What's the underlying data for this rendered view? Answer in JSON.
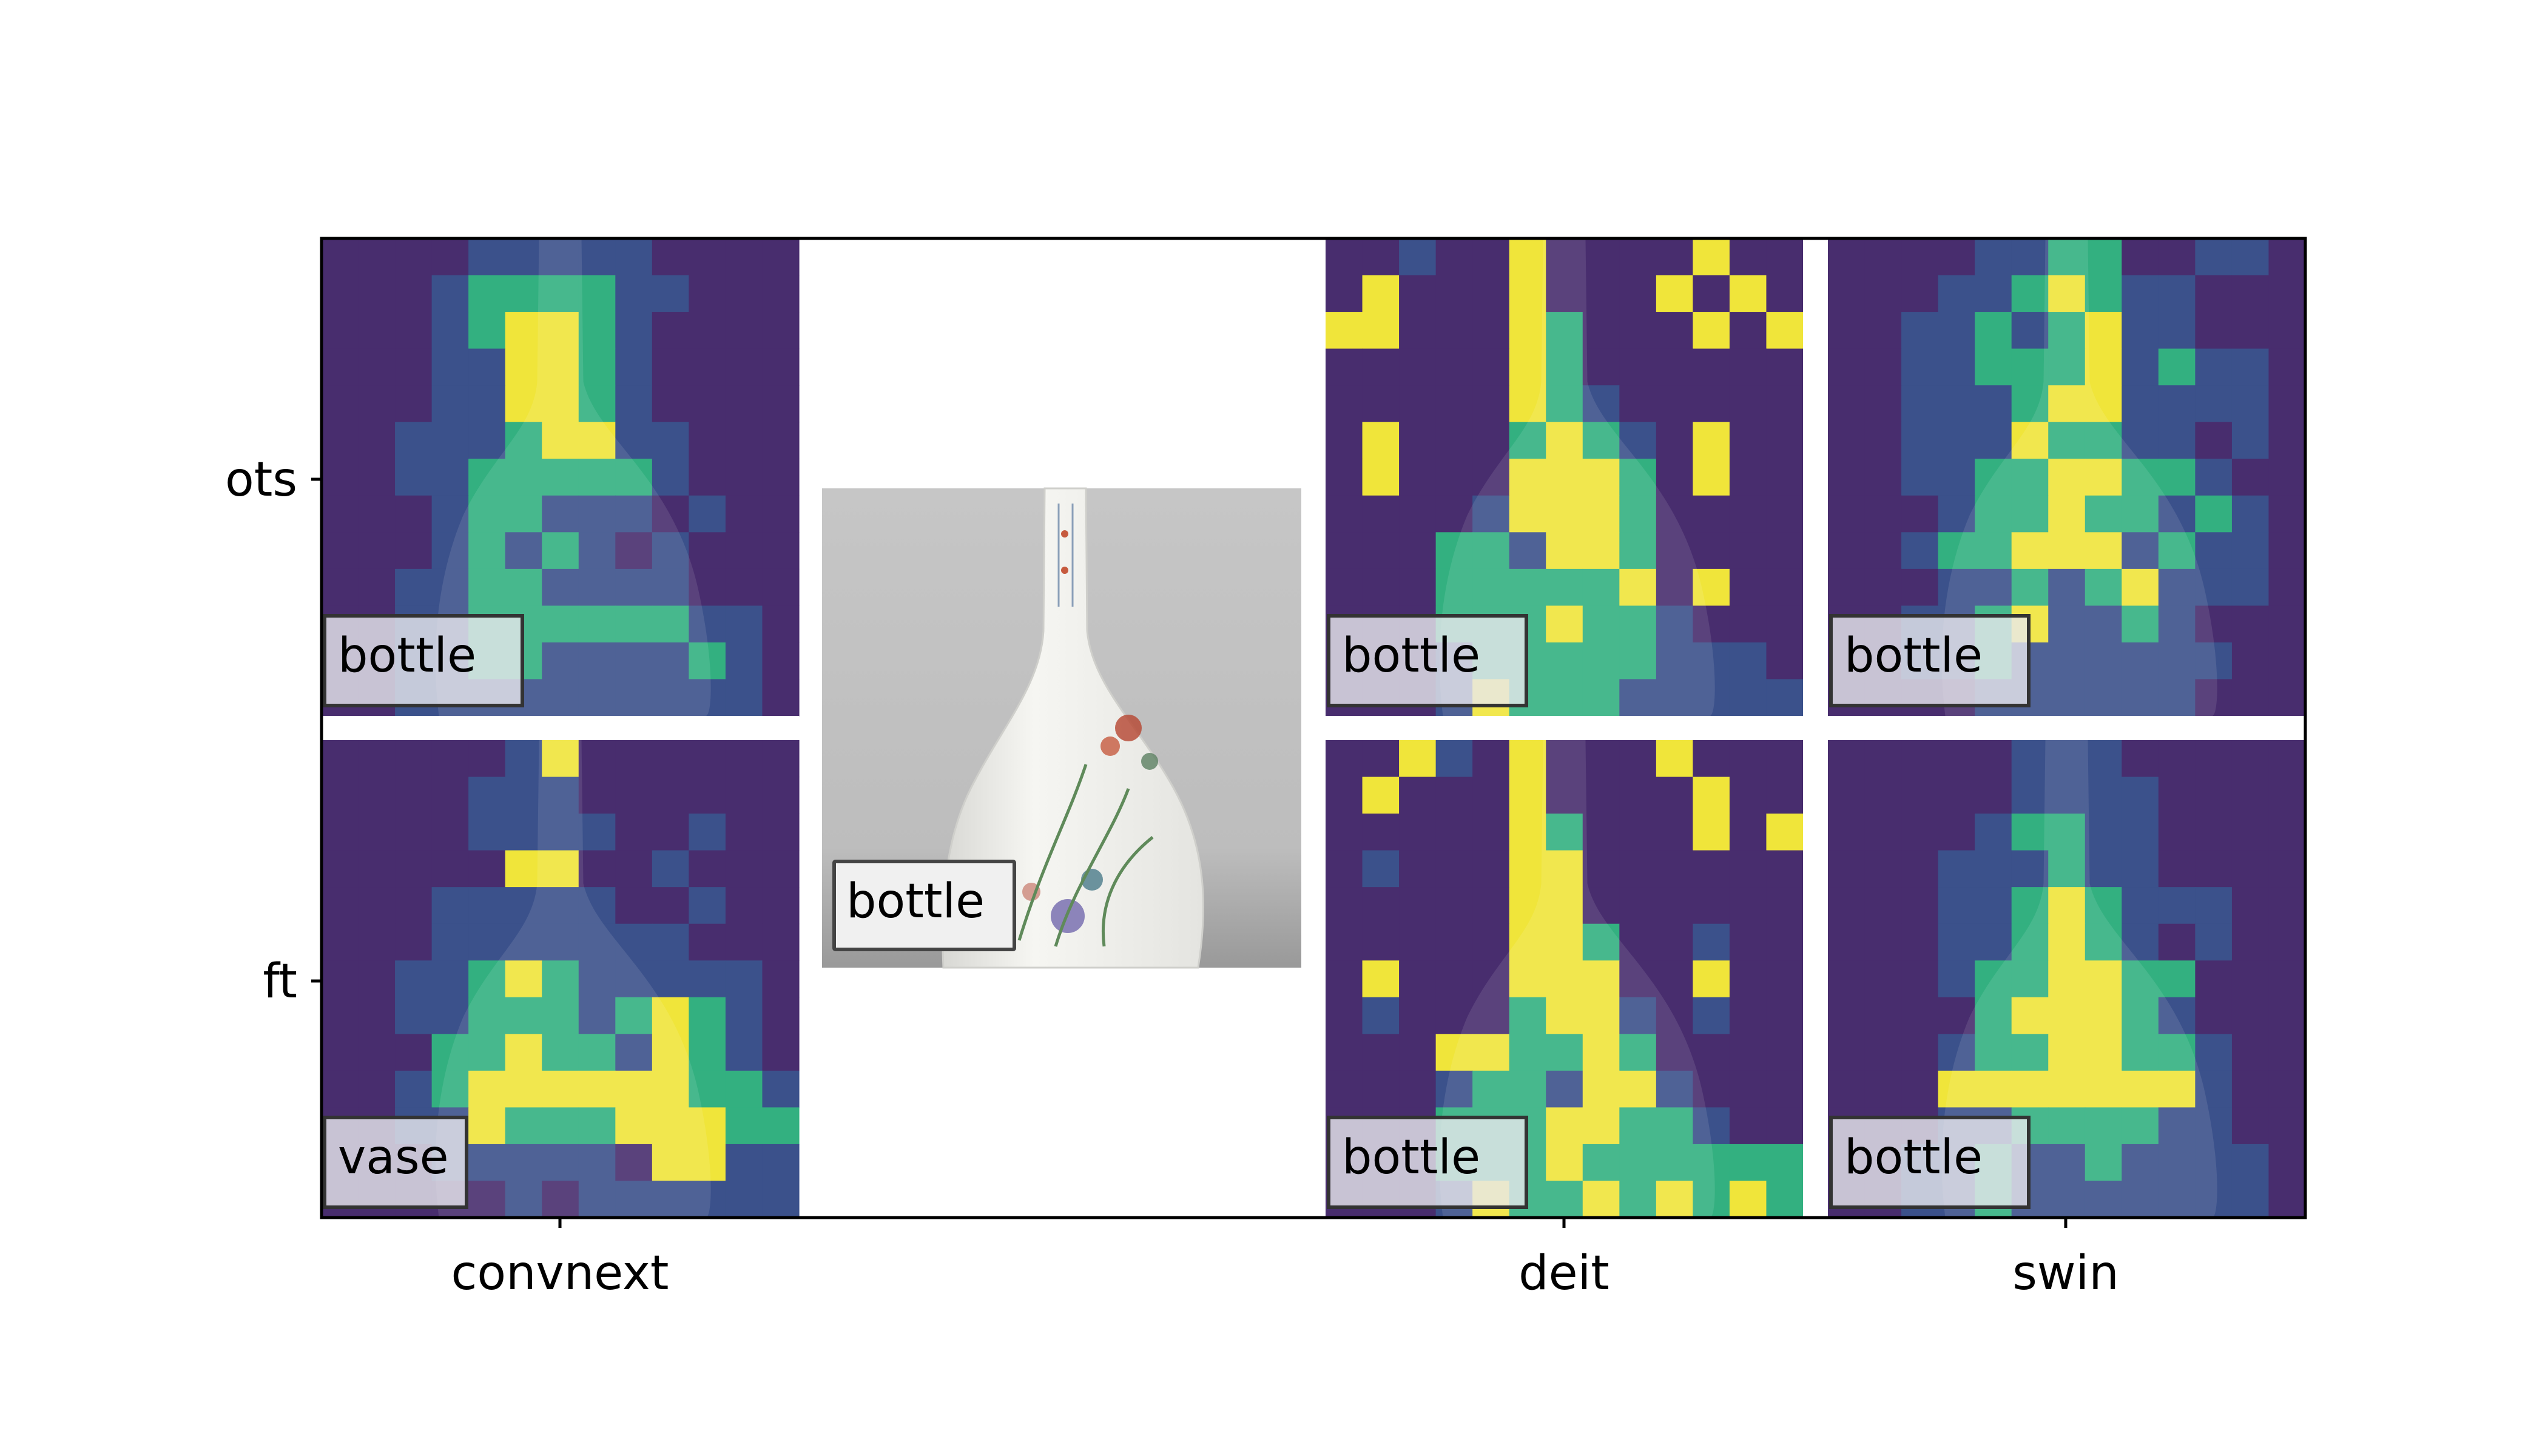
{
  "rows": [
    {
      "label": "ots",
      "tick": "ots"
    },
    {
      "label": "ft",
      "tick": "ft"
    }
  ],
  "columns": [
    {
      "label": "convnext"
    },
    {
      "label": ""
    },
    {
      "label": "deit"
    },
    {
      "label": "swin"
    }
  ],
  "center": {
    "caption": "bottle"
  },
  "panels": [
    {
      "id": "convnext-ots",
      "caption": "bottle",
      "grid": [
        "0000111110000",
        "0001222211000",
        "0001233210000",
        "0001133210000",
        "0001133210000",
        "0011123311000",
        "0011222221000",
        "0001221110100",
        "0001212101000",
        "0011221111000",
        "0011222222110",
        "0011221111210",
        "0011111111110"
      ]
    },
    {
      "id": "deit-ots",
      "caption": "bottle",
      "grid": [
        "0010030000300",
        "0300030003030",
        "3300032000303",
        "0000032000000",
        "0000032100000",
        "0300023210300",
        "0300033320300",
        "0000133320000",
        "0002213320000",
        "0002222230300",
        "0002223221000",
        "0001222221110",
        "0001322211111"
      ]
    },
    {
      "id": "swin-ots",
      "caption": "bottle",
      "grid": [
        "0000112200110",
        "0001123211000",
        "0011212311000",
        "0011222312110",
        "0011123311110",
        "0011132211010",
        "0011223322100",
        "0001223221210",
        "0012233312110",
        "0001121231110",
        "0011231121000",
        "0011211111100",
        "0000111111000"
      ]
    },
    {
      "id": "convnext-ft",
      "caption": "vase",
      "grid": [
        "0000013000000",
        "0000111000000",
        "0000111100100",
        "0000033001000",
        "0001111100100",
        "0001111111000",
        "0011232111110",
        "0011222123210",
        "0002232213210",
        "0012333333221",
        "0011322233322",
        "0001111103311",
        "0000010111111"
      ]
    },
    {
      "id": "deit-ft",
      "caption": "bottle",
      "grid": [
        "0031030003000",
        "0300030000300",
        "0000032000303",
        "0100033000000",
        "0000033000000",
        "0000033200100",
        "0300033300300",
        "0100023310100",
        "0003322320000",
        "0001221331000",
        "0002223322100",
        "0002223222222",
        "0001322323232"
      ]
    },
    {
      "id": "swin-ft",
      "caption": "bottle",
      "grid": [
        "0000011100000",
        "0000011110000",
        "0000122110000",
        "0001112110000",
        "0001123211100",
        "0001123210100",
        "0001223322000",
        "0000233321000",
        "0001223322100",
        "0003333333100",
        "0001122221100",
        "0011211211110",
        "0011211111110"
      ]
    }
  ],
  "colors": {
    "heat": [
      "#482d6e",
      "#3b518b",
      "#33b080",
      "#f0e53a"
    ],
    "caption_fill": "#e8e8ee",
    "caption_edge": "#333333",
    "image_bg": "#bdbdbd",
    "vase_body": "#f2f2ee"
  }
}
